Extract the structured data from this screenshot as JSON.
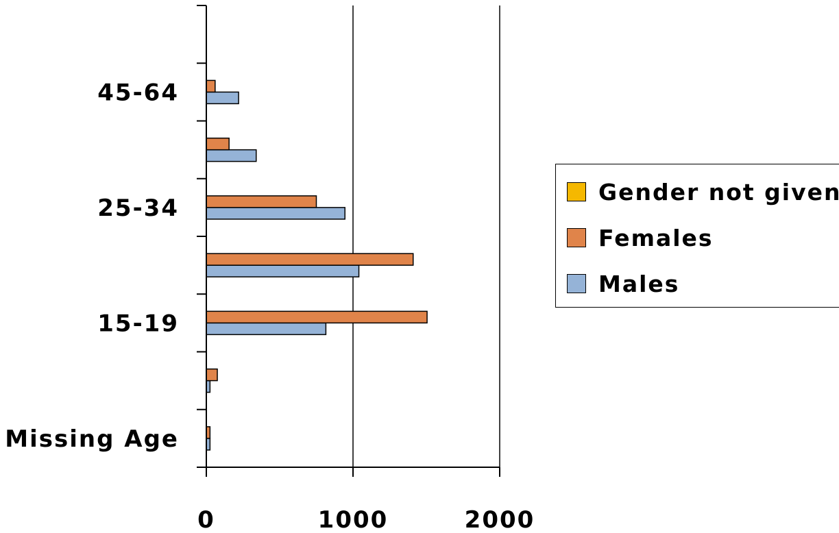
{
  "chart_data": {
    "type": "bar",
    "orientation": "horizontal",
    "categories": [
      "Missing Age",
      "",
      "15-19",
      "",
      "25-34",
      "",
      "45-64",
      ""
    ],
    "series": [
      {
        "name": "Males",
        "color": "#95b3d7",
        "values": [
          25,
          25,
          815,
          1040,
          945,
          340,
          220,
          null
        ]
      },
      {
        "name": "Females",
        "color": "#e0844a",
        "values": [
          25,
          75,
          1505,
          1410,
          750,
          155,
          60,
          null
        ]
      },
      {
        "name": "Gender not given",
        "color": "#f5b800",
        "values": [
          null,
          null,
          null,
          null,
          null,
          null,
          null,
          null
        ]
      }
    ],
    "xlim": [
      0,
      2000
    ],
    "xticks": [
      "0",
      "1000",
      "2000"
    ],
    "grid": "vertical",
    "legend_position": "right",
    "legend_order": [
      "Gender not given",
      "Females",
      "Males"
    ]
  }
}
